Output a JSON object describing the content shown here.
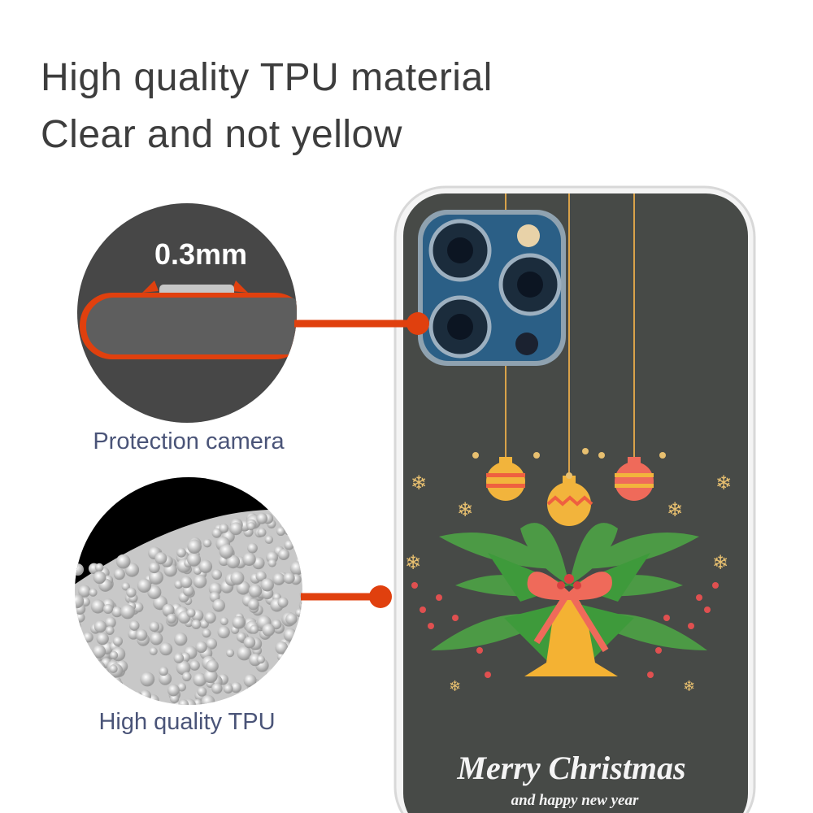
{
  "headline": {
    "line1": "High quality TPU material",
    "line2": "Clear and not yellow"
  },
  "callouts": [
    {
      "label": "0.3mm",
      "caption": "Protection camera"
    },
    {
      "label": "",
      "caption": "High quality TPU"
    }
  ],
  "case_print": {
    "title": "Merry Christmas",
    "subtitle": "and happy new year"
  },
  "colors": {
    "accent": "#e0400e",
    "case_background": "#474a47",
    "caption_text": "#4a5478",
    "headline_text": "#3d3d3d"
  }
}
